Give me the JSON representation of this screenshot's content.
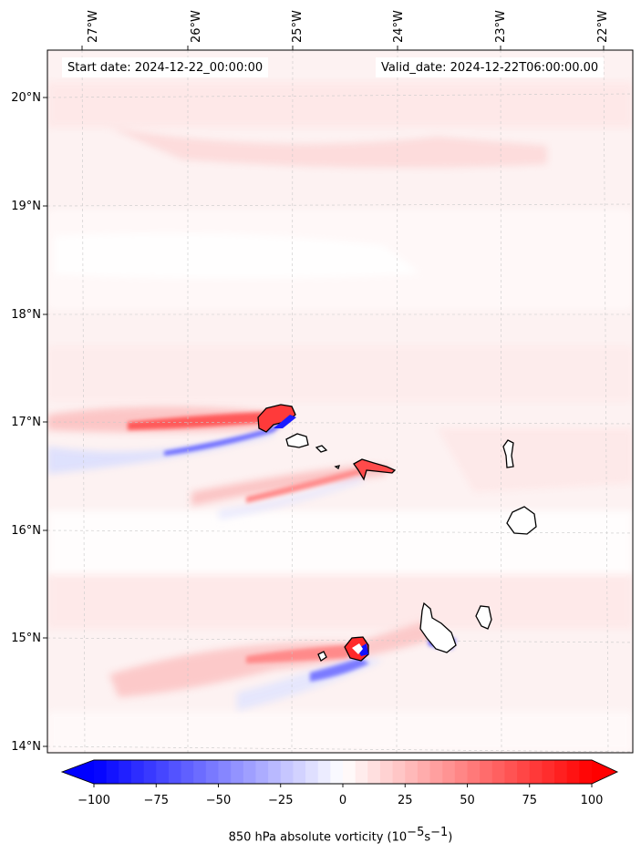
{
  "header": {
    "start_date": "Start date: 2024-12-22_00:00:00",
    "valid_date": "Valid_date: 2024-12-22T06:00:00.00"
  },
  "map": {
    "lon_labels": [
      "27°W",
      "26°W",
      "25°W",
      "24°W",
      "23°W",
      "22°W"
    ],
    "lat_labels": [
      "20°N",
      "19°N",
      "18°N",
      "17°N",
      "16°N",
      "15°N",
      "14°N"
    ],
    "background_color": "#fdf3f3"
  },
  "colorbar": {
    "ticks": [
      "−100",
      "−75",
      "−50",
      "−25",
      "0",
      "25",
      "50",
      "75",
      "100"
    ],
    "min": -100,
    "max": 100,
    "label_prefix": "850 hPa absolute vorticity (10",
    "label_exp1": "−5",
    "label_mid": "s",
    "label_exp2": "−1",
    "label_suffix": ")",
    "colors": {
      "low": "#0000ff",
      "mid": "#ffffff",
      "high": "#ff0000"
    }
  }
}
